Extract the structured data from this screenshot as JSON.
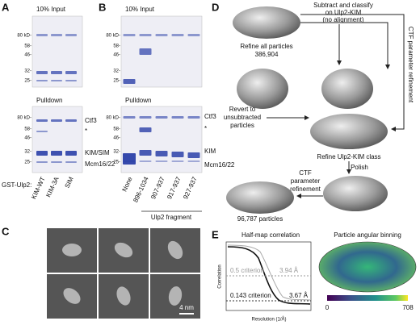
{
  "panel_a": {
    "label": "A",
    "input_title": "10% Input",
    "input_ladder": [
      "80 kD-",
      "58-",
      "46-",
      "32-",
      "25-"
    ],
    "pulldown_title": "Pulldown",
    "pulldown_ladder": [
      "80 kD-",
      "58-",
      "46-",
      "32-",
      "25-"
    ],
    "band_labels": [
      "Ctf3",
      "*",
      "KIM/SIM",
      "Mcm16/22"
    ],
    "construct_label": "GST-Ulp2:",
    "lanes": [
      "KIM-WT",
      "KIM-3A",
      "SIM"
    ]
  },
  "panel_b": {
    "label": "B",
    "input_title": "10% Input",
    "input_ladder": [
      "80 kD-",
      "58-",
      "46-",
      "32-",
      "25-"
    ],
    "pulldown_title": "Pulldown",
    "pulldown_ladder": [
      "80 kD-",
      "58-",
      "46-",
      "32-",
      "25-"
    ],
    "band_labels": [
      "Ctf3",
      "*",
      "KIM",
      "Mcm16/22"
    ],
    "lanes": [
      "None",
      "896-1034",
      "907-937",
      "917-937",
      "927-937"
    ],
    "lanes_caption": "Ulp2 fragment"
  },
  "panel_c": {
    "label": "C",
    "scale_bar": "4 nm"
  },
  "panel_d": {
    "label": "D",
    "subtract": [
      "Subtract and classify",
      "on Ulp2-KIM",
      "(no alignment)"
    ],
    "refine_all": "Refine all particles",
    "refine_all_count": "386,904",
    "ctf_side": "CTF parameter refinement",
    "revert": [
      "Revert to",
      "unsubtracted",
      "particles"
    ],
    "refine_class": "Refine Ulp2-KIM class",
    "polish": "Polish",
    "ctf_bottom": [
      "CTF",
      "parameter",
      "refinement"
    ],
    "final_count": "96,787 particles"
  },
  "panel_e": {
    "label": "E",
    "fsc_title": "Half-map correlation",
    "y_label": "Correlation",
    "x_label": "Resolution (1/Å)",
    "half_criterion": "0.5 criterion",
    "half_resolution": "3.94 Å",
    "gold_criterion": "0.143 criterion",
    "gold_resolution": "3.67 Å",
    "angular_title": "Particle angular binning",
    "colorbar_min": "0",
    "colorbar_max": "708"
  }
}
